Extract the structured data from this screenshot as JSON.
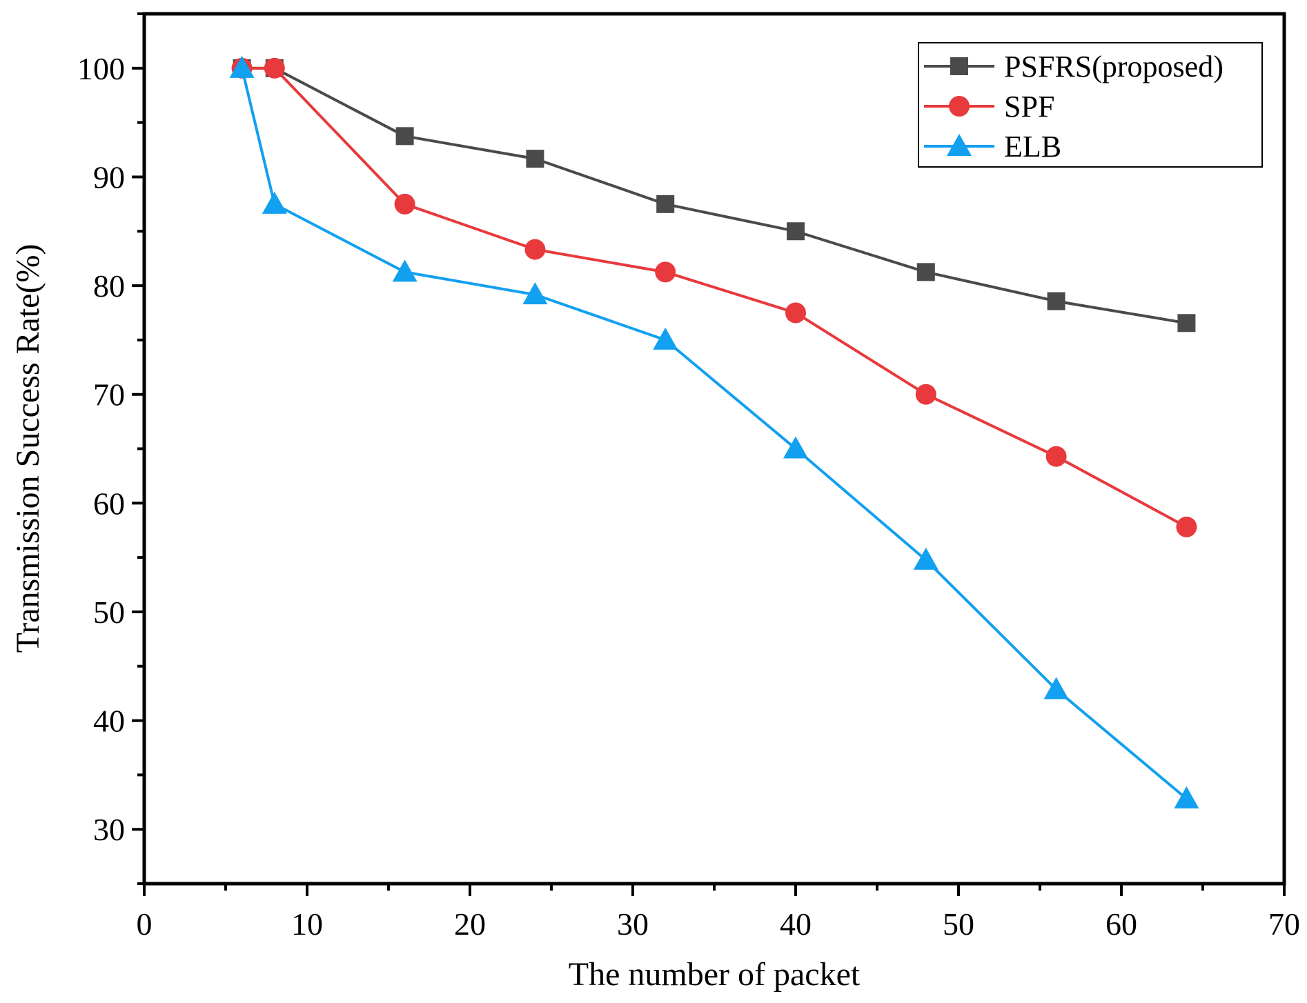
{
  "chart_data": {
    "type": "line",
    "title": "",
    "xlabel": "The number of packet",
    "ylabel": "Transmission Success Rate(%)",
    "xlim": [
      0,
      70
    ],
    "ylim": [
      25,
      105
    ],
    "xticks": [
      0,
      10,
      20,
      30,
      40,
      50,
      60,
      70
    ],
    "yticks": [
      30,
      40,
      50,
      60,
      70,
      80,
      90,
      100
    ],
    "xtick_labels": [
      "0",
      "10",
      "20",
      "30",
      "40",
      "50",
      "60",
      "70"
    ],
    "ytick_labels": [
      "30",
      "40",
      "50",
      "60",
      "70",
      "80",
      "90",
      "100"
    ],
    "grid": false,
    "legend_position": "top-right",
    "series": [
      {
        "name": "PSFRS(proposed)",
        "color": "#4a4a4a",
        "marker": "square",
        "x": [
          6,
          8,
          16,
          24,
          32,
          40,
          48,
          56,
          64
        ],
        "y": [
          100,
          100,
          93.75,
          91.67,
          87.5,
          85.0,
          81.25,
          78.57,
          76.56
        ]
      },
      {
        "name": "SPF",
        "color": "#e8393c",
        "marker": "circle",
        "x": [
          6,
          8,
          16,
          24,
          32,
          40,
          48,
          56,
          64
        ],
        "y": [
          100,
          100,
          87.5,
          83.33,
          81.25,
          77.5,
          70.0,
          64.29,
          57.81
        ]
      },
      {
        "name": "ELB",
        "color": "#12a0f0",
        "marker": "triangle",
        "x": [
          6,
          8,
          16,
          24,
          32,
          40,
          48,
          56,
          64
        ],
        "y": [
          100,
          87.5,
          81.25,
          79.17,
          75.0,
          65.0,
          54.76,
          42.86,
          32.81
        ]
      }
    ]
  }
}
